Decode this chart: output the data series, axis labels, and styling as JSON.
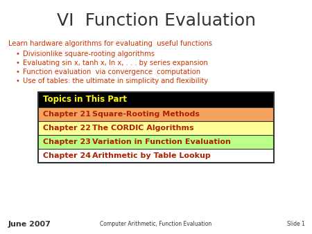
{
  "title": "VI  Function Evaluation",
  "title_color": "#333333",
  "title_fontsize": 18,
  "bg_color": "#ffffff",
  "intro_text": "Learn hardware algorithms for evaluating  useful functions",
  "intro_color": "#cc3300",
  "bullet_items": [
    "Divisionlike square-rooting algorithms",
    "Evaluating sin x, tanh x, ln x, . . . by series expansion",
    "Function evaluation  via convergence  computation",
    "Use of tables: the ultimate in simplicity and flexibility"
  ],
  "bullet_color": "#cc3300",
  "table_header_text": "Topics in This Part",
  "table_header_bg": "#000000",
  "table_header_fg": "#ffff00",
  "table_rows": [
    {
      "label": "Chapter 21",
      "desc": "Square-Rooting Methods",
      "bg": "#f4a460"
    },
    {
      "label": "Chapter 22",
      "desc": "The CORDIC Algorithms",
      "bg": "#ffff99"
    },
    {
      "label": "Chapter 23",
      "desc": "Variation in Function Evaluation",
      "bg": "#bbff88"
    },
    {
      "label": "Chapter 24",
      "desc": "Arithmetic by Table Lookup",
      "bg": "#ffffff"
    }
  ],
  "table_text_color": "#aa2200",
  "table_border_color": "#333333",
  "footer_left": "June 2007",
  "footer_center": "Computer Arithmetic, Function Evaluation",
  "footer_right": "Slide 1",
  "footer_color": "#333333"
}
